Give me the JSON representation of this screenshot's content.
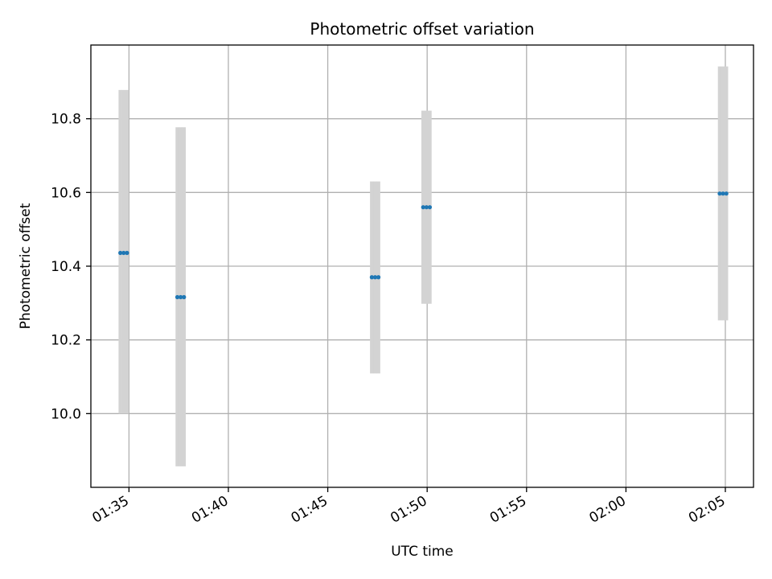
{
  "chart_data": {
    "type": "scatter",
    "title": "Photometric offset variation",
    "xlabel": "UTC time",
    "ylabel": "Photometric offset",
    "x_unit": "time of day (HH:MM:SS)",
    "xlim": [
      "01:33:05",
      "02:06:25"
    ],
    "ylim": [
      9.8,
      11.0
    ],
    "x_ticks": [
      "01:35",
      "01:40",
      "01:45",
      "01:50",
      "01:55",
      "02:00",
      "02:05"
    ],
    "y_ticks": [
      10.0,
      10.2,
      10.4,
      10.6,
      10.8
    ],
    "y_tick_labels": [
      "10.0",
      "10.2",
      "10.4",
      "10.6",
      "10.8"
    ],
    "grid": true,
    "series": [
      {
        "marker_color": "#1f77b4",
        "errorbar_color": "#d3d3d3",
        "points": [
          {
            "x": "01:34:34",
            "y": 10.436,
            "ylow": 10.0,
            "yhigh": 10.878
          },
          {
            "x": "01:34:44",
            "y": 10.436,
            "ylow": 10.0,
            "yhigh": 10.878
          },
          {
            "x": "01:34:54",
            "y": 10.436,
            "ylow": 10.0,
            "yhigh": 10.878
          },
          {
            "x": "01:37:26",
            "y": 10.316,
            "ylow": 9.857,
            "yhigh": 10.777
          },
          {
            "x": "01:37:36",
            "y": 10.316,
            "ylow": 9.857,
            "yhigh": 10.777
          },
          {
            "x": "01:37:46",
            "y": 10.316,
            "ylow": 9.857,
            "yhigh": 10.777
          },
          {
            "x": "01:47:13",
            "y": 10.37,
            "ylow": 10.109,
            "yhigh": 10.63
          },
          {
            "x": "01:47:23",
            "y": 10.37,
            "ylow": 10.109,
            "yhigh": 10.63
          },
          {
            "x": "01:47:33",
            "y": 10.37,
            "ylow": 10.109,
            "yhigh": 10.63
          },
          {
            "x": "01:49:48",
            "y": 10.56,
            "ylow": 10.298,
            "yhigh": 10.822
          },
          {
            "x": "01:49:58",
            "y": 10.56,
            "ylow": 10.298,
            "yhigh": 10.822
          },
          {
            "x": "01:50:08",
            "y": 10.56,
            "ylow": 10.298,
            "yhigh": 10.822
          },
          {
            "x": "02:04:43",
            "y": 10.597,
            "ylow": 10.253,
            "yhigh": 10.942
          },
          {
            "x": "02:04:53",
            "y": 10.597,
            "ylow": 10.253,
            "yhigh": 10.942
          },
          {
            "x": "02:05:03",
            "y": 10.597,
            "ylow": 10.253,
            "yhigh": 10.942
          }
        ]
      }
    ]
  }
}
